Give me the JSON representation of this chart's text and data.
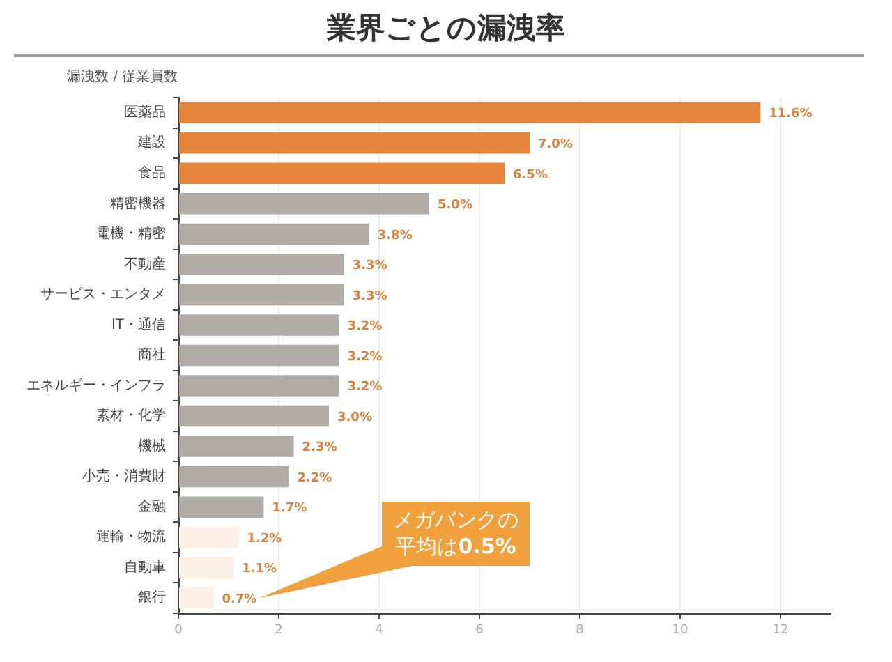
{
  "chart_data": {
    "type": "bar",
    "orientation": "horizontal",
    "title": "業界ごとの漏洩率",
    "ylabel": "漏洩数 / 従業員数",
    "categories": [
      "医薬品",
      "建設",
      "食品",
      "精密機器",
      "電機・精密",
      "不動産",
      "サービス・エンタメ",
      "IT・通信",
      "商社",
      "エネルギー・インフラ",
      "素材・化学",
      "機械",
      "小売・消費財",
      "金融",
      "運輸・物流",
      "自動車",
      "銀行"
    ],
    "values": [
      11.6,
      7.0,
      6.5,
      5.0,
      3.8,
      3.3,
      3.3,
      3.2,
      3.2,
      3.2,
      3.0,
      2.3,
      2.2,
      1.7,
      1.2,
      1.1,
      0.7
    ],
    "colors": [
      "#e5843b",
      "#e5843b",
      "#e5843b",
      "#b1ada6",
      "#b1ada6",
      "#b1ada6",
      "#b1ada6",
      "#b1ada6",
      "#b1ada6",
      "#b1ada6",
      "#b1ada6",
      "#b1ada6",
      "#b1ada6",
      "#b1ada6",
      "#fcefe3",
      "#fcefe3",
      "#fcefe3"
    ],
    "value_labels": [
      "11.6%",
      "7.0%",
      "6.5%",
      "5.0%",
      "3.8%",
      "3.3%",
      "3.3%",
      "3.2%",
      "3.2%",
      "3.2%",
      "3.0%",
      "2.3%",
      "2.2%",
      "1.7%",
      "1.2%",
      "1.1%",
      "0.7%"
    ],
    "xlim": [
      0,
      13
    ],
    "xticks": [
      0,
      2,
      4,
      6,
      8,
      10,
      12
    ],
    "grid": "x",
    "annotations": [
      "メガバンクの平均は0.5%"
    ]
  }
}
